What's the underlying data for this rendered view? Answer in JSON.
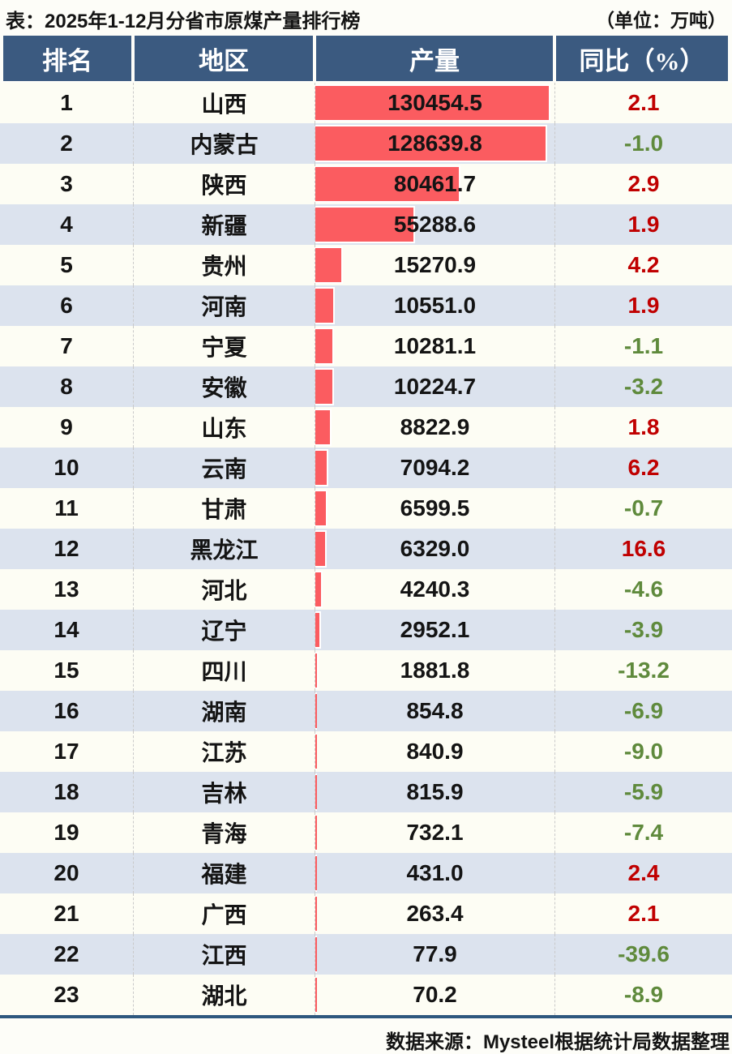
{
  "title": {
    "text": "表：2025年1-12月分省市原煤产量排行榜",
    "unit": "（单位：万吨）"
  },
  "table": {
    "columns": [
      "排名",
      "地区",
      "产量",
      "同比（%）"
    ],
    "rows": [
      {
        "rank": "1",
        "region": "山西",
        "production": "130454.5",
        "yoy": "2.1"
      },
      {
        "rank": "2",
        "region": "内蒙古",
        "production": "128639.8",
        "yoy": "-1.0"
      },
      {
        "rank": "3",
        "region": "陕西",
        "production": "80461.7",
        "yoy": "2.9"
      },
      {
        "rank": "4",
        "region": "新疆",
        "production": "55288.6",
        "yoy": "1.9"
      },
      {
        "rank": "5",
        "region": "贵州",
        "production": "15270.9",
        "yoy": "4.2"
      },
      {
        "rank": "6",
        "region": "河南",
        "production": "10551.0",
        "yoy": "1.9"
      },
      {
        "rank": "7",
        "region": "宁夏",
        "production": "10281.1",
        "yoy": "-1.1"
      },
      {
        "rank": "8",
        "region": "安徽",
        "production": "10224.7",
        "yoy": "-3.2"
      },
      {
        "rank": "9",
        "region": "山东",
        "production": "8822.9",
        "yoy": "1.8"
      },
      {
        "rank": "10",
        "region": "云南",
        "production": "7094.2",
        "yoy": "6.2"
      },
      {
        "rank": "11",
        "region": "甘肃",
        "production": "6599.5",
        "yoy": "-0.7"
      },
      {
        "rank": "12",
        "region": "黑龙江",
        "production": "6329.0",
        "yoy": "16.6"
      },
      {
        "rank": "13",
        "region": "河北",
        "production": "4240.3",
        "yoy": "-4.6"
      },
      {
        "rank": "14",
        "region": "辽宁",
        "production": "2952.1",
        "yoy": "-3.9"
      },
      {
        "rank": "15",
        "region": "四川",
        "production": "1881.8",
        "yoy": "-13.2"
      },
      {
        "rank": "16",
        "region": "湖南",
        "production": "854.8",
        "yoy": "-6.9"
      },
      {
        "rank": "17",
        "region": "江苏",
        "production": "840.9",
        "yoy": "-9.0"
      },
      {
        "rank": "18",
        "region": "吉林",
        "production": "815.9",
        "yoy": "-5.9"
      },
      {
        "rank": "19",
        "region": "青海",
        "production": "732.1",
        "yoy": "-7.4"
      },
      {
        "rank": "20",
        "region": "福建",
        "production": "431.0",
        "yoy": "2.4"
      },
      {
        "rank": "21",
        "region": "广西",
        "production": "263.4",
        "yoy": "2.1"
      },
      {
        "rank": "22",
        "region": "江西",
        "production": "77.9",
        "yoy": "-39.6"
      },
      {
        "rank": "23",
        "region": "湖北",
        "production": "70.2",
        "yoy": "-8.9"
      }
    ]
  },
  "footer": {
    "source": "数据来源：Mysteel根据统计局数据整理"
  },
  "colors": {
    "header_bg": "#3b5a80",
    "bar_red": "#fb5c60",
    "yoy_positive_red": "#c00000",
    "yoy_negative_green": "#5f8a3c",
    "row_alt_blue": "#dce3ee",
    "row_base_cream": "#fdfdf4",
    "footer_line_blue": "#2e587e"
  },
  "chart_data": {
    "type": "bar",
    "title": "2025年1-12月分省市原煤产量排行榜",
    "unit": "万吨",
    "categories": [
      "山西",
      "内蒙古",
      "陕西",
      "新疆",
      "贵州",
      "河南",
      "宁夏",
      "安徽",
      "山东",
      "云南",
      "甘肃",
      "黑龙江",
      "河北",
      "辽宁",
      "四川",
      "湖南",
      "江苏",
      "吉林",
      "青海",
      "福建",
      "广西",
      "江西",
      "湖北"
    ],
    "series": [
      {
        "name": "产量(万吨)",
        "values": [
          130454.5,
          128639.8,
          80461.7,
          55288.6,
          15270.9,
          10551.0,
          10281.1,
          10224.7,
          8822.9,
          7094.2,
          6599.5,
          6329.0,
          4240.3,
          2952.1,
          1881.8,
          854.8,
          840.9,
          815.9,
          732.1,
          431.0,
          263.4,
          77.9,
          70.2
        ]
      },
      {
        "name": "同比(%)",
        "values": [
          2.1,
          -1.0,
          2.9,
          1.9,
          4.2,
          1.9,
          -1.1,
          -3.2,
          1.8,
          6.2,
          -0.7,
          16.6,
          -4.6,
          -3.9,
          -13.2,
          -6.9,
          -9.0,
          -5.9,
          -7.4,
          2.4,
          2.1,
          -39.6,
          -8.9
        ]
      }
    ],
    "value_axis_max": 130454.5,
    "bar_color": "#fb5c60",
    "orientation": "horizontal",
    "grid": false,
    "legend": "none"
  }
}
